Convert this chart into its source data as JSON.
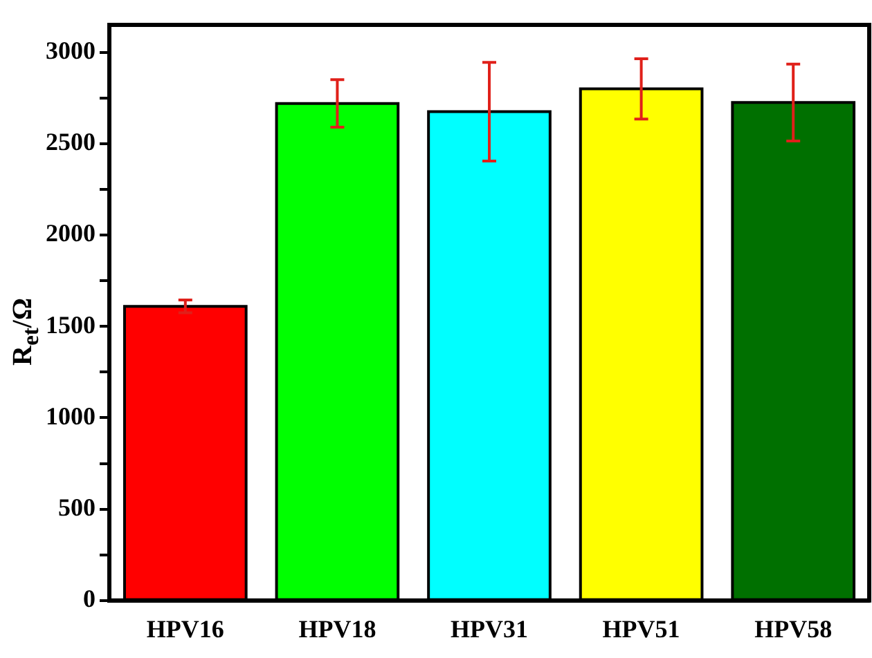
{
  "chart_data": {
    "type": "bar",
    "ylabel": "R$_{et}$/Ω",
    "categories": [
      "HPV16",
      "HPV18",
      "HPV31",
      "HPV51",
      "HPV58"
    ],
    "values": [
      1610,
      2720,
      2675,
      2800,
      2725
    ],
    "errors": [
      35,
      130,
      270,
      165,
      210
    ],
    "colors": [
      "#ff0000",
      "#00ff00",
      "#00ffff",
      "#ffff00",
      "#007000"
    ],
    "ylim": [
      0,
      3150
    ],
    "yticks": [
      0,
      {
        "value": 250,
        "label": null
      },
      500,
      {
        "value": 750,
        "label": null
      },
      1000,
      {
        "value": 1250,
        "label": null
      },
      1500,
      {
        "value": 1750,
        "label": null
      },
      2000,
      {
        "value": 2250,
        "label": null
      },
      2500,
      {
        "value": 2750,
        "label": null
      },
      3000
    ],
    "grid": false,
    "legend": false
  }
}
